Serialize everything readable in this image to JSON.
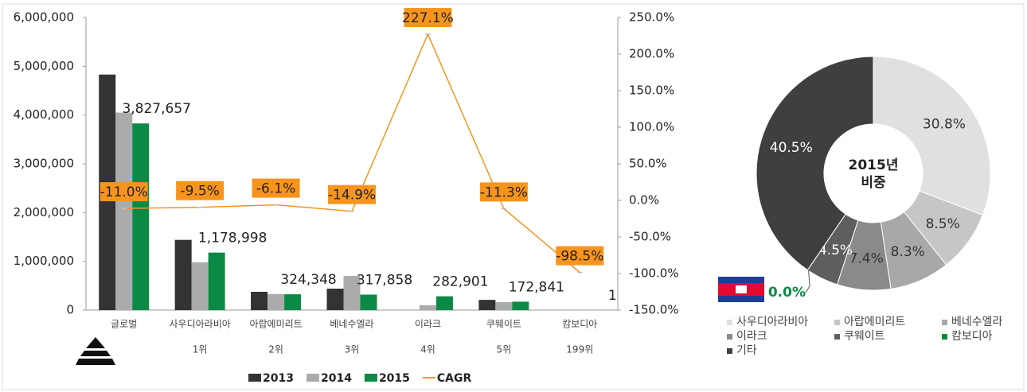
{
  "chart_data": [
    {
      "type": "bar",
      "categories": [
        "글로벌",
        "사우디아라비아",
        "아랍에미리트",
        "베네수엘라",
        "이라크",
        "쿠웨이트",
        "캄보디아"
      ],
      "ranks": [
        null,
        "1위",
        "2위",
        "3위",
        "4위",
        "5위",
        "199위"
      ],
      "series": [
        {
          "name": "2013",
          "color": "#333333",
          "values": [
            4830000,
            1440000,
            375000,
            440000,
            0,
            210000,
            0
          ]
        },
        {
          "name": "2014",
          "color": "#ababab",
          "values": [
            4050000,
            980000,
            330000,
            700000,
            100000,
            165000,
            0
          ]
        },
        {
          "name": "2015",
          "color": "#0b8a45",
          "values": [
            3827657,
            1178998,
            324348,
            317858,
            282901,
            172841,
            1
          ],
          "value_labels": [
            "3,827,657",
            "1,178,998",
            "324,348",
            "317,858",
            "282,901",
            "172,841",
            "1"
          ]
        },
        {
          "name": "CAGR",
          "type": "line",
          "axis": "y2",
          "color": "#f7941d",
          "values": [
            -11.0,
            -9.5,
            -6.1,
            -14.9,
            227.1,
            -11.3,
            -98.5
          ],
          "value_labels": [
            "-11.0%",
            "-9.5%",
            "-6.1%",
            "-14.9%",
            "227.1%",
            "-11.3%",
            "-98.5%"
          ]
        }
      ],
      "ylim": [
        0,
        6000000
      ],
      "yticks": [
        0,
        {
          "value": 1000000,
          "label": "1,000,000"
        },
        {
          "value": 2000000,
          "label": "2,000,000"
        },
        {
          "value": 3000000,
          "label": "3,000,000"
        },
        {
          "value": 4000000,
          "label": "4,000,000"
        },
        {
          "value": 5000000,
          "label": "5,000,000"
        },
        {
          "value": 6000000,
          "label": "6,000,000"
        }
      ],
      "y2lim": [
        -150,
        250
      ],
      "y2ticks": [
        {
          "value": -150,
          "label": "-150.0%"
        },
        {
          "value": -100,
          "label": "-100.0%"
        },
        {
          "value": -50,
          "label": "-50.0%"
        },
        {
          "value": 0,
          "label": "0.0%"
        },
        {
          "value": 50,
          "label": "50.0%"
        },
        {
          "value": 100,
          "label": "100.0%"
        },
        {
          "value": 150,
          "label": "150.0%"
        },
        {
          "value": 200,
          "label": "200.0%"
        },
        {
          "value": 250,
          "label": "250.0%"
        }
      ]
    },
    {
      "type": "pie",
      "center_label": [
        "2015년",
        "비중"
      ],
      "categories": [
        "사우디아라비아",
        "아랍에미리트",
        "베네수엘라",
        "이라크",
        "쿠웨이트",
        "캄보디아",
        "기타"
      ],
      "values": [
        30.8,
        8.5,
        8.3,
        7.4,
        4.5,
        0.0,
        40.5
      ],
      "value_labels": [
        "30.8%",
        "8.5%",
        "8.3%",
        "7.4%",
        "4.5%",
        "0.0%",
        "40.5%"
      ],
      "colors": [
        "#e0e0e0",
        "#c6c6c6",
        "#a8a8a8",
        "#8a8a8a",
        "#5e5e5e",
        "#0b8a45",
        "#3f3f3f"
      ]
    }
  ]
}
